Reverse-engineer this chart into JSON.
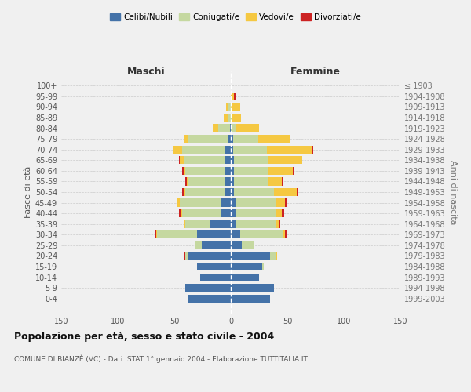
{
  "age_groups": [
    "0-4",
    "5-9",
    "10-14",
    "15-19",
    "20-24",
    "25-29",
    "30-34",
    "35-39",
    "40-44",
    "45-49",
    "50-54",
    "55-59",
    "60-64",
    "65-69",
    "70-74",
    "75-79",
    "80-84",
    "85-89",
    "90-94",
    "95-99",
    "100+"
  ],
  "birth_years": [
    "1999-2003",
    "1994-1998",
    "1989-1993",
    "1984-1988",
    "1979-1983",
    "1974-1978",
    "1969-1973",
    "1964-1968",
    "1959-1963",
    "1954-1958",
    "1949-1953",
    "1944-1948",
    "1939-1943",
    "1934-1938",
    "1929-1933",
    "1924-1928",
    "1919-1923",
    "1914-1918",
    "1909-1913",
    "1904-1908",
    "≤ 1903"
  ],
  "males": {
    "celibi": [
      38,
      40,
      27,
      30,
      38,
      26,
      30,
      18,
      8,
      8,
      5,
      5,
      5,
      5,
      5,
      3,
      1,
      0,
      0,
      0,
      0
    ],
    "coniugati": [
      0,
      0,
      0,
      0,
      2,
      5,
      35,
      22,
      35,
      37,
      35,
      33,
      35,
      37,
      38,
      35,
      10,
      3,
      2,
      0,
      0
    ],
    "vedovi": [
      0,
      0,
      0,
      0,
      0,
      0,
      1,
      1,
      1,
      2,
      1,
      1,
      2,
      3,
      8,
      3,
      5,
      3,
      2,
      0,
      0
    ],
    "divorziati": [
      0,
      0,
      0,
      0,
      1,
      1,
      1,
      1,
      2,
      1,
      2,
      1,
      1,
      1,
      0,
      1,
      0,
      0,
      0,
      0,
      0
    ]
  },
  "females": {
    "nubili": [
      35,
      38,
      25,
      28,
      35,
      10,
      8,
      5,
      5,
      5,
      3,
      3,
      3,
      3,
      2,
      2,
      0,
      0,
      0,
      0,
      0
    ],
    "coniugate": [
      0,
      0,
      0,
      1,
      5,
      10,
      38,
      35,
      35,
      35,
      35,
      30,
      30,
      30,
      30,
      22,
      5,
      1,
      0,
      0,
      0
    ],
    "vedove": [
      0,
      0,
      0,
      0,
      1,
      1,
      2,
      3,
      5,
      8,
      20,
      12,
      22,
      30,
      40,
      28,
      20,
      8,
      8,
      3,
      0
    ],
    "divorziate": [
      0,
      0,
      0,
      0,
      0,
      0,
      2,
      1,
      2,
      2,
      2,
      1,
      1,
      0,
      1,
      1,
      0,
      0,
      0,
      1,
      0
    ]
  },
  "colors": {
    "celibi_nubili": "#4472a8",
    "coniugati": "#c5d8a0",
    "vedovi": "#f5c842",
    "divorziati": "#cc2222"
  },
  "xlim": 150,
  "title": "Popolazione per età, sesso e stato civile - 2004",
  "subtitle": "COMUNE DI BIANZÈ (VC) - Dati ISTAT 1° gennaio 2004 - Elaborazione TUTTITALIA.IT",
  "ylabel_left": "Fasce di età",
  "ylabel_right": "Anni di nascita",
  "xlabel_left": "Maschi",
  "xlabel_right": "Femmine",
  "bg_color": "#f0f0f0",
  "bar_height": 0.75
}
